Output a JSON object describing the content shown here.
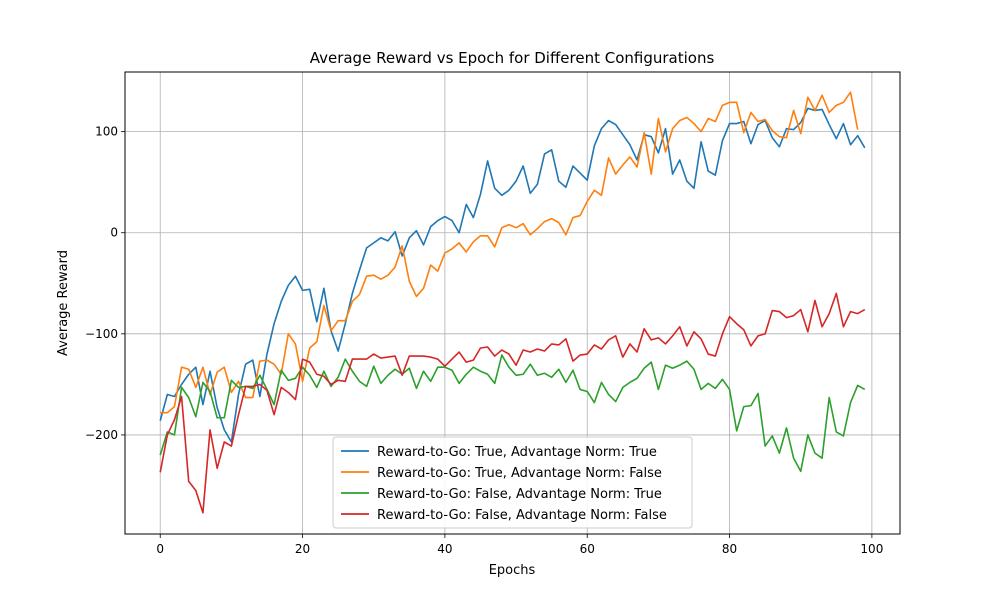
{
  "chart_data": {
    "type": "line",
    "title": "Average Reward vs Epoch for Different Configurations",
    "xlabel": "Epochs",
    "ylabel": "Average Reward",
    "xlim": [
      -4.95,
      103.95
    ],
    "ylim": [
      -298,
      159
    ],
    "xticks": [
      0,
      20,
      40,
      60,
      80,
      100
    ],
    "yticks": [
      -200,
      -100,
      0,
      100
    ],
    "ytick_labels": [
      "−200",
      "−100",
      "0",
      "100"
    ],
    "grid": true,
    "legend_position": "lower-center",
    "colors": [
      "#1f77b4",
      "#ff7f0e",
      "#2ca02c",
      "#d62728"
    ],
    "series": [
      {
        "name": "Reward-to-Go: True, Advantage Norm: True",
        "values": [
          -186,
          -160,
          -162,
          -150,
          -140,
          -133,
          -170,
          -137,
          -173,
          -195,
          -207,
          -160,
          -130,
          -126,
          -162,
          -120,
          -90,
          -68,
          -52,
          -43,
          -57,
          -56,
          -88,
          -55,
          -97,
          -117,
          -90,
          -60,
          -37,
          -15,
          -10,
          -5,
          -8,
          1,
          -23,
          -5,
          2,
          -12,
          6,
          12,
          16,
          12,
          0,
          28,
          15,
          38,
          71,
          44,
          37,
          42,
          51,
          66,
          39,
          48,
          78,
          82,
          51,
          45,
          66,
          59,
          52,
          86,
          103,
          111,
          107,
          97,
          87,
          72,
          97,
          95,
          79,
          103,
          58,
          72,
          51,
          44,
          90,
          61,
          57,
          91,
          108,
          108,
          110,
          88,
          107,
          111,
          94,
          85,
          103,
          102,
          109,
          123,
          121,
          122,
          107,
          93,
          108,
          87,
          96,
          84
        ]
      },
      {
        "name": "Reward-to-Go: True, Advantage Norm: False",
        "values": [
          -178,
          -178,
          -172,
          -133,
          -135,
          -153,
          -133,
          -160,
          -138,
          -133,
          -158,
          -147,
          -163,
          -163,
          -127,
          -126,
          -130,
          -140,
          -100,
          -110,
          -147,
          -114,
          -108,
          -72,
          -97,
          -87,
          -87,
          -68,
          -61,
          -43,
          -42,
          -46,
          -42,
          -34,
          -13,
          -48,
          -63,
          -55,
          -32,
          -38,
          -20,
          -16,
          -10,
          -19,
          -9,
          -3,
          -3,
          -14,
          5,
          8,
          5,
          9,
          -2,
          4,
          11,
          14,
          10,
          -2,
          15,
          17,
          31,
          42,
          37,
          74,
          58,
          67,
          75,
          65,
          99,
          58,
          113,
          80,
          103,
          111,
          114,
          108,
          100,
          113,
          110,
          126,
          129,
          129,
          99,
          119,
          110,
          112,
          101,
          95,
          94,
          121,
          98,
          134,
          121,
          136,
          119,
          126,
          129,
          139,
          102
        ]
      },
      {
        "name": "Reward-to-Go: False, Advantage Norm: True",
        "values": [
          -220,
          -197,
          -200,
          -153,
          -163,
          -182,
          -148,
          -157,
          -183,
          -183,
          -146,
          -153,
          -152,
          -154,
          -141,
          -155,
          -170,
          -136,
          -146,
          -144,
          -133,
          -141,
          -153,
          -137,
          -152,
          -143,
          -125,
          -137,
          -147,
          -152,
          -132,
          -149,
          -141,
          -135,
          -140,
          -134,
          -154,
          -137,
          -147,
          -133,
          -133,
          -136,
          -149,
          -140,
          -133,
          -137,
          -140,
          -149,
          -121,
          -133,
          -141,
          -140,
          -130,
          -141,
          -139,
          -143,
          -135,
          -148,
          -136,
          -155,
          -157,
          -168,
          -148,
          -160,
          -167,
          -153,
          -148,
          -144,
          -134,
          -128,
          -155,
          -131,
          -134,
          -131,
          -127,
          -135,
          -155,
          -149,
          -154,
          -145,
          -155,
          -196,
          -172,
          -171,
          -159,
          -211,
          -201,
          -218,
          -193,
          -223,
          -236,
          -200,
          -218,
          -223,
          -163,
          -197,
          -201,
          -168,
          -151,
          -155
        ]
      },
      {
        "name": "Reward-to-Go: False, Advantage Norm: False",
        "values": [
          -237,
          -200,
          -185,
          -162,
          -246,
          -255,
          -277,
          -195,
          -233,
          -207,
          -211,
          -180,
          -152,
          -152,
          -150,
          -156,
          -180,
          -153,
          -158,
          -165,
          -125,
          -128,
          -140,
          -142,
          -150,
          -146,
          -147,
          -125,
          -125,
          -125,
          -120,
          -124,
          -123,
          -122,
          -141,
          -122,
          -122,
          -122,
          -123,
          -125,
          -132,
          -125,
          -118,
          -128,
          -126,
          -114,
          -113,
          -122,
          -116,
          -120,
          -131,
          -116,
          -118,
          -115,
          -117,
          -110,
          -111,
          -105,
          -127,
          -121,
          -120,
          -111,
          -115,
          -106,
          -102,
          -123,
          -110,
          -118,
          -95,
          -106,
          -104,
          -110,
          -102,
          -93,
          -112,
          -98,
          -105,
          -120,
          -122,
          -100,
          -83,
          -90,
          -96,
          -112,
          -102,
          -100,
          -77,
          -78,
          -84,
          -82,
          -76,
          -98,
          -67,
          -93,
          -80,
          -60,
          -93,
          -78,
          -80,
          -76
        ]
      }
    ]
  }
}
